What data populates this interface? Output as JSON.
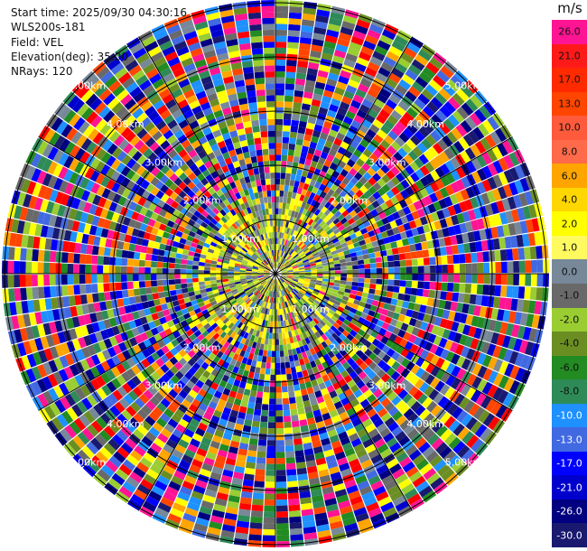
{
  "info": {
    "start_time": "Start time: 2025/09/30 04:30:16",
    "station": "WLS200s-181",
    "field": "Field: VEL",
    "elevation": "Elevation(deg): 35.00",
    "nrays": "NRays: 120"
  },
  "colorbar": {
    "unit": "m/s",
    "levels": [
      {
        "label": "26.0",
        "color": "#ff1493"
      },
      {
        "label": "21.0",
        "color": "#ff1a1a"
      },
      {
        "label": "17.0",
        "color": "#ff2a00"
      },
      {
        "label": "13.0",
        "color": "#ff4500"
      },
      {
        "label": "10.0",
        "color": "#ff5a3c"
      },
      {
        "label": "8.0",
        "color": "#ff6a4a"
      },
      {
        "label": "6.0",
        "color": "#ffa500"
      },
      {
        "label": "4.0",
        "color": "#ffd700"
      },
      {
        "label": "2.0",
        "color": "#ffff00"
      },
      {
        "label": "1.0",
        "color": "#fffa60"
      },
      {
        "label": "0.0",
        "color": "#778899"
      },
      {
        "label": "-1.0",
        "color": "#696969"
      },
      {
        "label": "-2.0",
        "color": "#9acd32"
      },
      {
        "label": "-4.0",
        "color": "#6b8e23"
      },
      {
        "label": "-6.0",
        "color": "#228b22"
      },
      {
        "label": "-8.0",
        "color": "#2e8b57"
      },
      {
        "label": "-10.0",
        "color": "#1e90ff"
      },
      {
        "label": "-13.0",
        "color": "#4169e1"
      },
      {
        "label": "-17.0",
        "color": "#0000ff"
      },
      {
        "label": "-21.0",
        "color": "#0000cd"
      },
      {
        "label": "-26.0",
        "color": "#000080"
      },
      {
        "label": "-30.0",
        "color": "#191970"
      }
    ]
  },
  "ppi": {
    "range_labels": [
      "1.00km",
      "2.00km",
      "3.00km",
      "4.00km",
      "5.00km"
    ],
    "palette": [
      "#ff1493",
      "#ff0000",
      "#ff4500",
      "#ffa500",
      "#ffff00",
      "#778899",
      "#696969",
      "#9acd32",
      "#6b8e23",
      "#228b22",
      "#2e8b57",
      "#1e90ff",
      "#4169e1",
      "#0000ff",
      "#0000cd",
      "#000080",
      "#191970"
    ]
  }
}
